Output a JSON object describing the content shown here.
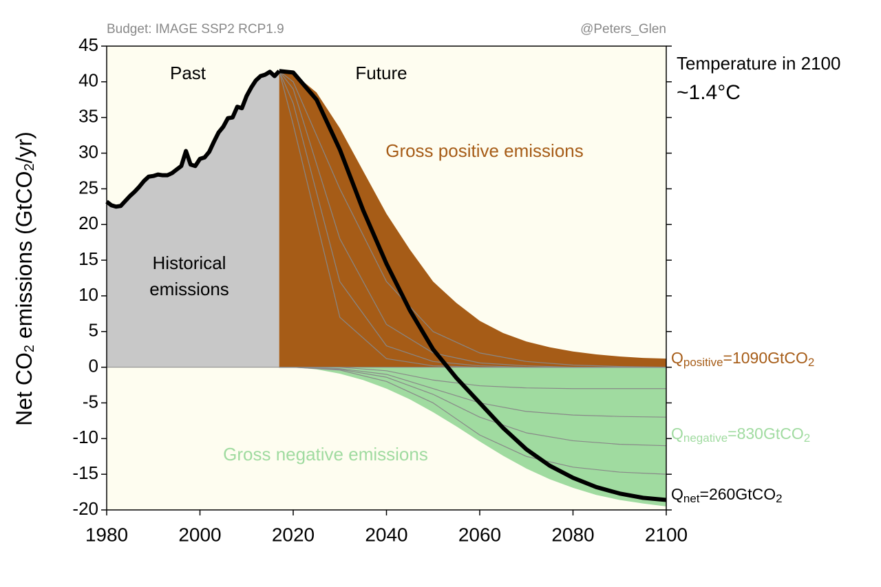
{
  "chart_data": {
    "type": "area",
    "title": "Budget: IMAGE SSP2 RCP1.9",
    "credit": "@Peters_Glen",
    "y_label_parts": [
      "Net CO",
      "2",
      " emissions (GtCO",
      "2",
      "/yr)"
    ],
    "xlim": [
      1980,
      2100
    ],
    "xticks": [
      1980,
      2000,
      2020,
      2040,
      2060,
      2080,
      2100
    ],
    "ylim": [
      -20,
      45
    ],
    "yticks": [
      -20,
      -15,
      -10,
      -5,
      0,
      5,
      10,
      15,
      20,
      25,
      30,
      35,
      40,
      45
    ],
    "annotations": {
      "past": "Past",
      "future": "Future",
      "historical": [
        "Historical",
        "emissions"
      ],
      "gross_positive": "Gross positive emissions",
      "gross_negative": "Gross negative emissions",
      "temperature": "Temperature in 2100",
      "temperature_value": "~1.4°C"
    },
    "q_labels": {
      "positive": [
        "Q",
        "positive",
        "=1090GtCO",
        "2"
      ],
      "negative": [
        "Q",
        "negative",
        "=830GtCO",
        "2"
      ],
      "net": [
        "Q",
        "net",
        "=260GtCO",
        "2"
      ]
    },
    "historical": {
      "color": "#c8c8c8",
      "x": [
        1980,
        1981,
        1982,
        1983,
        1984,
        1985,
        1986,
        1987,
        1988,
        1989,
        1990,
        1991,
        1992,
        1993,
        1994,
        1995,
        1996,
        1997,
        1998,
        1999,
        2000,
        2001,
        2002,
        2003,
        2004,
        2005,
        2006,
        2007,
        2008,
        2009,
        2010,
        2011,
        2012,
        2013,
        2014,
        2015,
        2016,
        2017
      ],
      "values": [
        23.2,
        22.7,
        22.5,
        22.6,
        23.3,
        24,
        24.6,
        25.3,
        26.1,
        26.7,
        26.8,
        27.0,
        26.9,
        26.9,
        27.2,
        27.7,
        28.2,
        30.3,
        28.4,
        28.2,
        29.2,
        29.4,
        30.2,
        31.6,
        32.9,
        33.7,
        34.9,
        35.0,
        36.5,
        36.3,
        38.0,
        39.2,
        40.2,
        40.8,
        41.0,
        41.4,
        40.8,
        41.5
      ]
    },
    "future_x": [
      2017,
      2020,
      2025,
      2030,
      2035,
      2040,
      2045,
      2050,
      2055,
      2060,
      2065,
      2070,
      2075,
      2080,
      2085,
      2090,
      2095,
      2100
    ],
    "gross_positive": {
      "color": "#a65c17",
      "values": [
        41.5,
        41.2,
        38.5,
        33.5,
        27.5,
        21.5,
        16.5,
        12,
        9,
        6.5,
        4.8,
        3.6,
        2.8,
        2.2,
        1.8,
        1.5,
        1.3,
        1.2
      ]
    },
    "gross_negative": {
      "color": "#a0dba0",
      "values": [
        0,
        0,
        -0.3,
        -0.9,
        -1.8,
        -3.0,
        -4.5,
        -6.3,
        -8.3,
        -10.4,
        -12.4,
        -14.2,
        -15.7,
        -16.9,
        -17.9,
        -18.6,
        -19.1,
        -19.5
      ]
    },
    "net": {
      "color": "#000000",
      "values": [
        41.5,
        41.3,
        37.5,
        30.5,
        22,
        14.5,
        8,
        2.5,
        -1.5,
        -5,
        -8.5,
        -11.5,
        -13.8,
        -15.5,
        -16.8,
        -17.7,
        -18.3,
        -18.6
      ]
    },
    "curve_x": [
      2017,
      2020,
      2030,
      2040,
      2050,
      2060,
      2070,
      2080,
      2090,
      2100
    ],
    "curves": [
      [
        41.5,
        40,
        25,
        12,
        5,
        2,
        0.8,
        0.3,
        0.1,
        0
      ],
      [
        41.5,
        39,
        18,
        6,
        2,
        0.6,
        0.2,
        0,
        0,
        0
      ],
      [
        41.5,
        37,
        12,
        3,
        0.8,
        0.2,
        0,
        0,
        0,
        0
      ],
      [
        41.5,
        34,
        7,
        1.2,
        0.2,
        0,
        0,
        0,
        0,
        0
      ],
      [
        0,
        0,
        0,
        -0.5,
        -1.8,
        -2.6,
        -2.9,
        -3,
        -3,
        -3
      ],
      [
        0,
        0,
        -0.2,
        -1,
        -3,
        -5,
        -6.2,
        -6.7,
        -6.9,
        -7
      ],
      [
        0,
        0,
        -0.3,
        -1.4,
        -3.8,
        -7,
        -9.2,
        -10.3,
        -10.8,
        -11
      ],
      [
        0,
        0,
        -0.4,
        -2,
        -5,
        -9.5,
        -12.5,
        -14,
        -14.7,
        -15
      ]
    ],
    "curve_color": "#888888"
  }
}
